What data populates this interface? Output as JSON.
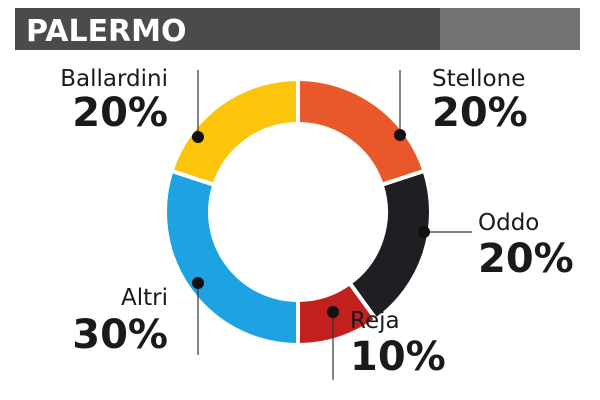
{
  "chart_data": {
    "type": "donut",
    "title": "PALERMO",
    "categories": [
      "Stellone",
      "Oddo",
      "Reja",
      "Altri",
      "Ballardini"
    ],
    "values": [
      20,
      20,
      10,
      30,
      20
    ],
    "value_labels": [
      "20%",
      "20%",
      "10%",
      "30%",
      "20%"
    ],
    "colors": [
      "#e9582b",
      "#1f1f23",
      "#c2201f",
      "#1ea3e2",
      "#fcc50b"
    ]
  }
}
